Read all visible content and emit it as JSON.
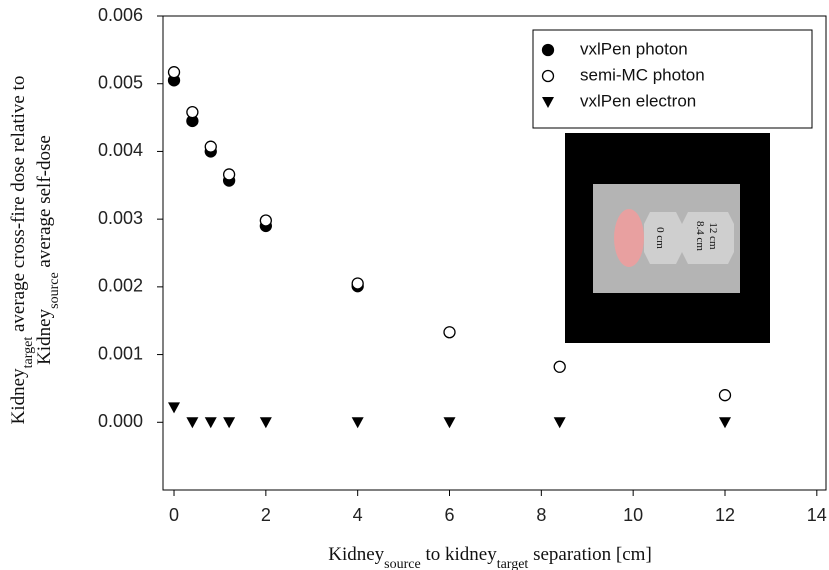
{
  "chart_data": {
    "type": "scatter",
    "y_label": [
      [
        "Kidney",
        "target",
        " average cross-fire dose relative to"
      ],
      [
        "Kidney",
        "source",
        " average self-dose"
      ]
    ],
    "x_label": [
      "Kidney",
      "source",
      " to kidney",
      "target",
      " separation [cm]"
    ],
    "xlim": [
      -0.24,
      14.2
    ],
    "ylim": [
      -0.001,
      0.006
    ],
    "xticks": [
      0,
      2,
      4,
      6,
      8,
      10,
      12,
      14
    ],
    "yticks": [
      {
        "value": 0,
        "label": "0.000"
      },
      0.001,
      0.002,
      0.003,
      0.004,
      0.005,
      0.006
    ],
    "legend": "top-right",
    "series": [
      {
        "name": "vxlPen photon",
        "color": "#000000",
        "marker": "filled-circle",
        "x": [
          0,
          0.4,
          0.8,
          1.2,
          2,
          4
        ],
        "values": [
          0.00505,
          0.00445,
          0.004,
          0.00357,
          0.0029,
          0.00201
        ]
      },
      {
        "name": "semi-MC photon",
        "color": "#000000",
        "marker": "open-circle",
        "x": [
          0,
          0.4,
          0.8,
          1.2,
          2,
          4,
          6,
          8.4,
          12
        ],
        "values": [
          0.00517,
          0.00458,
          0.00407,
          0.00366,
          0.00298,
          0.00205,
          0.00133,
          0.00082,
          0.0004
        ]
      },
      {
        "name": "vxlPen electron",
        "color": "#000000",
        "marker": "triangle-down",
        "x": [
          0,
          0.4,
          0.8,
          1.2,
          2,
          4,
          6,
          8.4,
          12
        ],
        "values": [
          0.00022,
          0,
          0,
          0,
          0,
          0,
          0,
          0,
          0
        ]
      }
    ],
    "inset": {
      "labels": [
        "0 cm",
        "12 cm",
        "8.4 cm"
      ]
    }
  }
}
